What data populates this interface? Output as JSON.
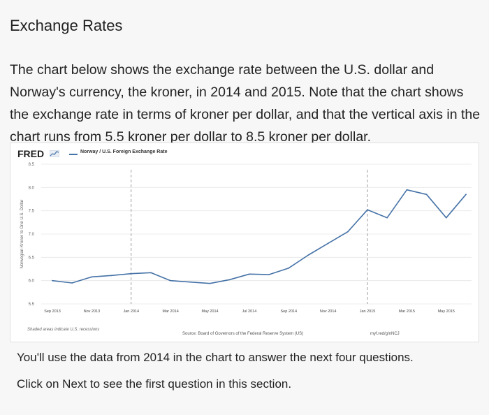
{
  "title": "Exchange Rates",
  "intro": "The chart below shows the exchange rate between the U.S. dollar and Norway's currency, the kroner, in 2014 and 2015. Note that the chart shows the exchange rate in terms of kroner per dollar, and that the vertical axis in the chart runs from 5.5 kroner per dollar to 8.5 kroner per dollar.",
  "fred_label": "FRED",
  "colors": {
    "line": "#4572a7",
    "grid": "#e6e6e6"
  },
  "chart_data": {
    "type": "line",
    "title": "",
    "legend": "Norway / U.S. Foreign Exchange Rate",
    "ylabel": "Norwegian Kroner to One U.S. Dollar",
    "xlabel": "",
    "ylim": [
      5.5,
      8.5
    ],
    "yticks": [
      "8.5",
      "8.0",
      "7.5",
      "7.0",
      "6.5",
      "6.0",
      "5.5"
    ],
    "x_tick_labels": [
      "Sep 2013",
      "Nov 2013",
      "Jan 2014",
      "Mar 2014",
      "May 2014",
      "Jul 2014",
      "Sep 2014",
      "Nov 2014",
      "Jan 2015",
      "Mar 2015",
      "May 2015"
    ],
    "x": [
      "Sep 2013",
      "Oct 2013",
      "Nov 2013",
      "Dec 2013",
      "Jan 2014",
      "Feb 2014",
      "Mar 2014",
      "Apr 2014",
      "May 2014",
      "Jun 2014",
      "Jul 2014",
      "Aug 2014",
      "Sep 2014",
      "Oct 2014",
      "Nov 2014",
      "Dec 2014",
      "Jan 2015",
      "Feb 2015",
      "Mar 2015",
      "Apr 2015",
      "May 2015",
      "Jun 2015"
    ],
    "values": [
      6.0,
      5.95,
      6.08,
      6.11,
      6.15,
      6.17,
      6.0,
      5.97,
      5.94,
      6.02,
      6.14,
      6.13,
      6.27,
      6.55,
      6.8,
      7.05,
      7.52,
      7.35,
      7.95,
      7.85,
      7.35,
      7.85
    ],
    "grid": "horizontal",
    "shaded_note": "Shaded areas indicate U.S. recessions",
    "source": "Source: Board of Governors of the Federal Reserve System (US)",
    "credit": "myf.red/g/nNCJ"
  },
  "outro": [
    "You'll use the data from 2014 in the chart to answer the next four questions.",
    "Click on Next to see the first question in this section."
  ]
}
